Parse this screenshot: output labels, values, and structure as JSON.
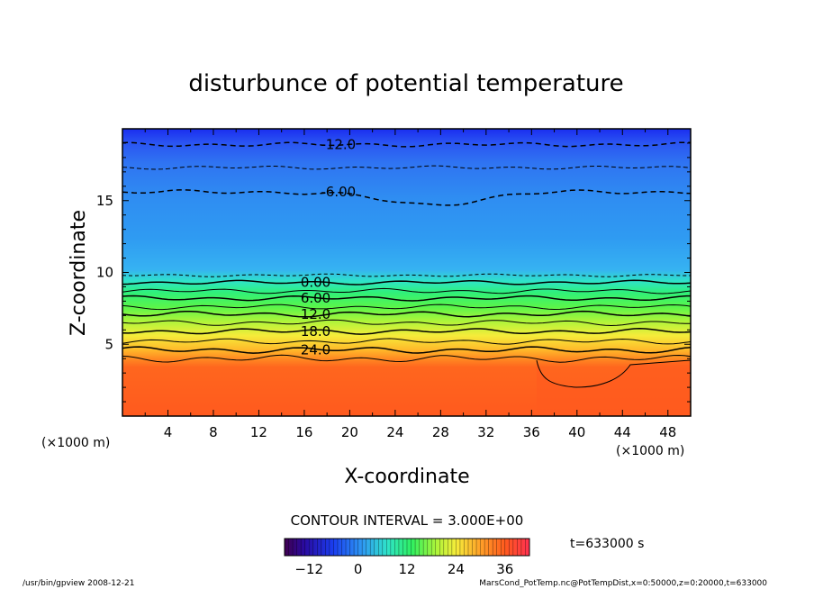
{
  "chart_data": {
    "type": "heatmap",
    "title": "disturbunce of potential temperature",
    "xlabel": "X-coordinate",
    "ylabel": "Z-coordinate",
    "x_unit": "(×1000 m)",
    "y_unit": "(×1000 m)",
    "xlim": [
      0,
      50
    ],
    "ylim": [
      0,
      20
    ],
    "x_ticks": [
      4,
      8,
      12,
      16,
      20,
      24,
      28,
      32,
      36,
      40,
      44,
      48
    ],
    "y_ticks": [
      5,
      10,
      15
    ],
    "contour_interval_text": "CONTOUR INTERVAL = 3.000E+00",
    "time_text": "t=633000 s",
    "colorbar": {
      "range": [
        -18,
        42
      ],
      "ticks": [
        -12,
        0,
        12,
        24,
        36
      ]
    },
    "labeled_contours": [
      {
        "label": "-12.0",
        "level": -12,
        "x": 19,
        "z": 18.9
      },
      {
        "label": "-6.00",
        "level": -6,
        "x": 19,
        "z": 15.6
      },
      {
        "label": "0.00",
        "level": 0,
        "x": 17,
        "z": 9.3
      },
      {
        "label": "6.00",
        "level": 6,
        "x": 17,
        "z": 8.2
      },
      {
        "label": "12.0",
        "level": 12,
        "x": 17,
        "z": 7.1
      },
      {
        "label": "18.0",
        "level": 18,
        "x": 17,
        "z": 5.9
      },
      {
        "label": "24.0",
        "level": 24,
        "x": 17,
        "z": 4.6
      }
    ],
    "footer_left": "/usr/bin/gpview   2008-12-21",
    "footer_right": "MarsCond_PotTemp.nc@PotTempDist,x=0:50000,z=0:20000,t=633000",
    "colors": {
      "background": "#ffffff",
      "orange_region": "#ff5a1e",
      "blue_top": "#1a2ef0",
      "contour_line": "#000000"
    }
  }
}
